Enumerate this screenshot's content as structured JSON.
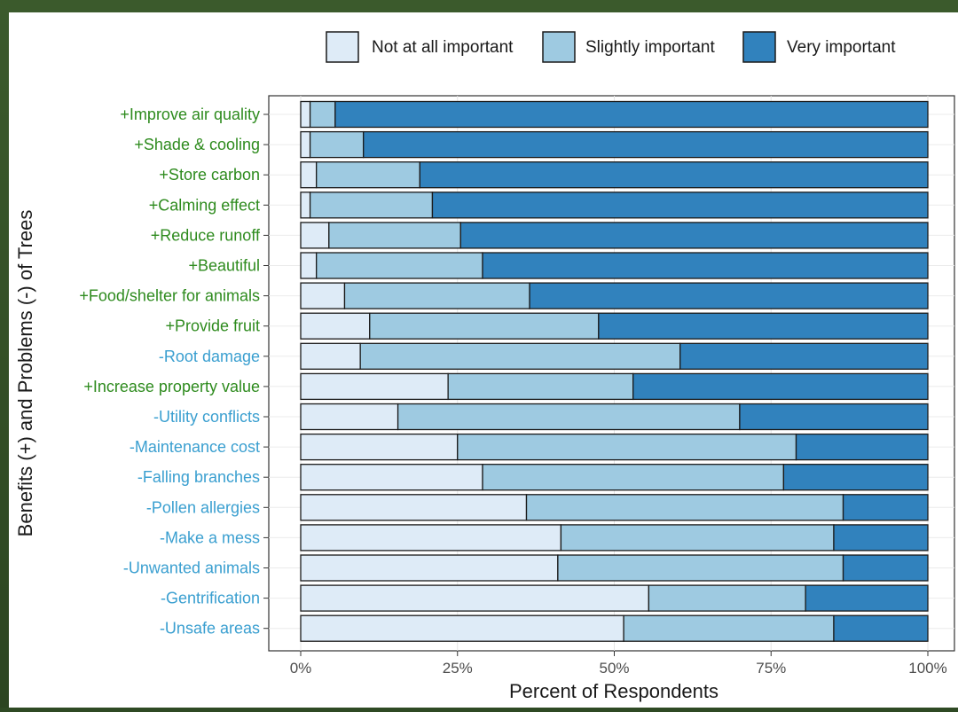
{
  "chart_data": {
    "type": "bar",
    "orientation": "horizontal",
    "stacked": true,
    "xlabel": "Percent of Respondents",
    "ylabel": "Benefits (+) and Problems (-) of Trees",
    "xlim": [
      0,
      100
    ],
    "x_ticks": [
      "0%",
      "25%",
      "50%",
      "75%",
      "100%"
    ],
    "legend_position": "top-right",
    "grid": true,
    "categories": [
      "+Improve air quality",
      "+Shade & cooling",
      "+Store carbon",
      "+Calming effect",
      "+Reduce runoff",
      "+Beautiful",
      "+Food/shelter for animals",
      "+Provide fruit",
      "-Root damage",
      "+Increase property value",
      "-Utility conflicts",
      "-Maintenance cost",
      "-Falling branches",
      "-Pollen allergies",
      "-Make a mess",
      "-Unwanted animals",
      "-Gentrification",
      "-Unsafe areas"
    ],
    "category_colors": {
      "benefit": "#2e8b1e",
      "problem": "#3a9fd0"
    },
    "series": [
      {
        "name": "Not at all important",
        "color": "#deebf7",
        "values": [
          1.5,
          1.5,
          2.5,
          1.5,
          4.5,
          2.5,
          7,
          11,
          9.5,
          23.5,
          15.5,
          25,
          29,
          36,
          41.5,
          41,
          55.5,
          51.5
        ]
      },
      {
        "name": "Slightly important",
        "color": "#9ecae1",
        "values": [
          4,
          8.5,
          16.5,
          19.5,
          21,
          26.5,
          29.5,
          36.5,
          51,
          29.5,
          54.5,
          54,
          48,
          50.5,
          43.5,
          45.5,
          25,
          33.5
        ]
      },
      {
        "name": "Very important",
        "color": "#3182bd",
        "values": [
          94.5,
          90,
          81,
          79,
          74.5,
          71,
          63.5,
          52.5,
          39.5,
          47,
          30,
          21,
          23,
          13.5,
          15,
          13.5,
          19.5,
          15
        ]
      }
    ]
  }
}
